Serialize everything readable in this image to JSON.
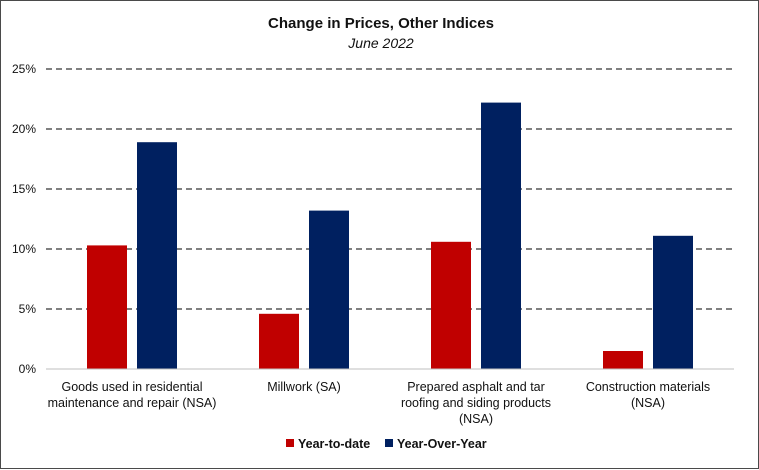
{
  "chart_data": {
    "type": "bar",
    "title": "Change in Prices, Other Indices",
    "subtitle": "June 2022",
    "categories": [
      [
        "Goods used in residential",
        "maintenance and repair (NSA)"
      ],
      [
        "Millwork (SA)"
      ],
      [
        "Prepared asphalt and tar",
        "roofing and siding products",
        "(NSA)"
      ],
      [
        "Construction materials",
        "(NSA)"
      ]
    ],
    "series": [
      {
        "name": "Year-to-date",
        "color": "#c00000",
        "values": [
          10.3,
          4.6,
          10.6,
          1.5
        ]
      },
      {
        "name": "Year-Over-Year",
        "color": "#002060",
        "values": [
          18.9,
          13.2,
          22.2,
          11.1
        ]
      }
    ],
    "ylim": [
      0,
      25
    ],
    "yticks": [
      0,
      5,
      10,
      15,
      20,
      25
    ],
    "ytick_suffix": "%",
    "grid": "dashed-horizontal",
    "legend_position": "bottom"
  }
}
